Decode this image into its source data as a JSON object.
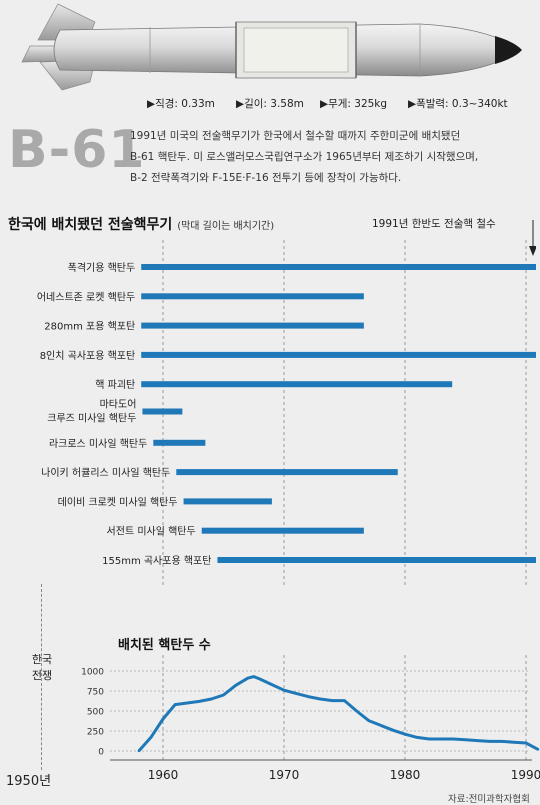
{
  "specs": [
    "▶직경: 0.33m",
    "▶길이: 3.58m",
    "▶무게: 325kg",
    "▶폭발력: 0.3~340kt"
  ],
  "bomb_title": "B-61",
  "description": [
    "1991년 미국의 전술핵무기가 한국에서 철수할 때까지 주한미군에 배치됐던",
    "B-61 핵탄두. 미 로스앨러모스국립연구소가 1965년부터 제조하기 시작했으며,",
    "B-2 전략폭격기와 F-15E·F-16 전투기 등에 장착이 가능하다."
  ],
  "section_title": "한국에 배치됐던 전술핵무기",
  "section_subtitle": "(막대 길이는 배치기간)",
  "withdrawal_note": "1991년 한반도 전술핵 철수",
  "korean_war_label": [
    "한국",
    "전쟁"
  ],
  "year_label_1950": "1950년",
  "source": "자료:전미과학자협회",
  "colors": {
    "bar": "#1f78b8",
    "grid": "#9a9a9a",
    "accent_title": "#a9a9a9"
  },
  "chart_data": [
    {
      "type": "bar",
      "orientation": "horizontal",
      "categories": [
        [
          "폭격기용 핵탄두"
        ],
        [
          "어네스트존 로켓 핵탄두"
        ],
        [
          "280mm 포용 핵포탄"
        ],
        [
          "8인치 곡사포용 핵포탄"
        ],
        [
          "핵 파괴탄"
        ],
        [
          "마타도어",
          "크루즈 미사일 핵탄두"
        ],
        [
          "라크로스 미사일 핵탄두"
        ],
        [
          "나이키 허큘리스 미사일 핵탄두"
        ],
        [
          "데이비 크로켓 미사일 핵탄두"
        ],
        [
          "서전트 미사일 핵탄두"
        ],
        [
          "155mm 곡사포용 핵포탄"
        ]
      ],
      "start": [
        1958.2,
        1958.2,
        1958.2,
        1958.2,
        1958.2,
        1958.3,
        1959.2,
        1961.1,
        1961.7,
        1963.2,
        1964.5
      ],
      "end": [
        1991.2,
        1976.6,
        1976.6,
        1991.3,
        1983.9,
        1961.6,
        1963.5,
        1979.4,
        1969.0,
        1976.6,
        1991.3
      ],
      "xlim": [
        1955,
        1991.5
      ],
      "grid": true
    },
    {
      "type": "area",
      "title": "배치된 핵탄두 수",
      "x": [
        1958,
        1959,
        1960,
        1961,
        1962,
        1963,
        1964,
        1965,
        1966,
        1967,
        1967.5,
        1968,
        1969,
        1970,
        1971,
        1972,
        1973,
        1974,
        1975,
        1976,
        1977,
        1978,
        1979,
        1980,
        1981,
        1982,
        1983,
        1984,
        1985,
        1986,
        1987,
        1988,
        1989,
        1990,
        1991
      ],
      "y": [
        0,
        170,
        400,
        580,
        600,
        620,
        650,
        700,
        820,
        910,
        930,
        900,
        830,
        760,
        720,
        680,
        650,
        630,
        630,
        500,
        380,
        320,
        260,
        210,
        170,
        150,
        150,
        150,
        140,
        130,
        120,
        120,
        110,
        100,
        20
      ],
      "xticks": [
        1960,
        1970,
        1980,
        1990
      ],
      "xlabels": [
        "1960",
        "1970",
        "1980",
        "1990"
      ],
      "yticks": [
        0,
        250,
        500,
        750,
        1000
      ],
      "ylabels": [
        "0",
        "250",
        "500",
        "750",
        "1000"
      ],
      "ylim": [
        0,
        1000
      ],
      "grid": true
    }
  ]
}
